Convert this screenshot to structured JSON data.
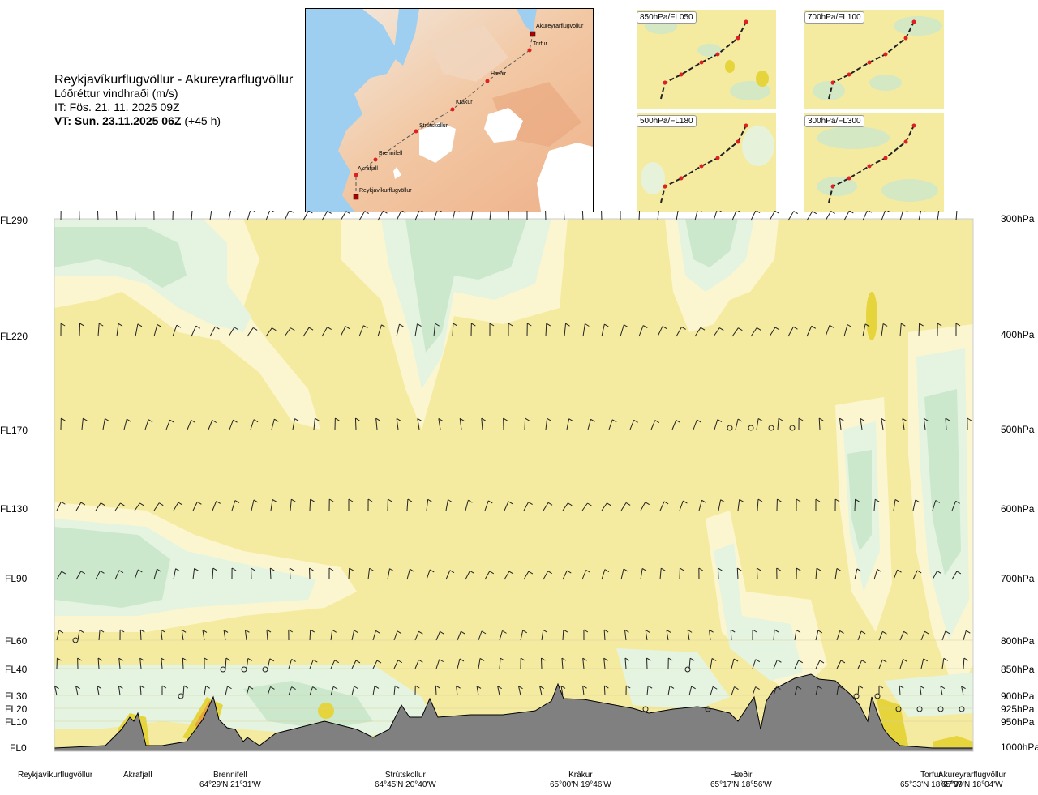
{
  "title": {
    "route": "Reykjavíkurflugvöllur - Akureyrarflugvöllur",
    "variable": "Lóðréttur vindhraði (m/s)",
    "issue_time": "IT: Fös. 21. 11. 2025 09Z",
    "valid_time_bold": "VT: Sun. 23.11.2025 06Z",
    "valid_time_offset": "(+45 h)"
  },
  "route_map": {
    "waypoints": [
      "Akureyrarflugvöllur",
      "Torfur",
      "Hæðir",
      "Krákur",
      "Strútskollur",
      "Brennifell",
      "Akrafjall",
      "Reykjavíkurflugvöllur"
    ]
  },
  "level_maps": [
    {
      "label": "850hPa/FL050"
    },
    {
      "label": "700hPa/FL100"
    },
    {
      "label": "500hPa/FL180"
    },
    {
      "label": "300hPa/FL300"
    }
  ],
  "flight_levels": [
    "FL290",
    "FL220",
    "FL170",
    "FL130",
    "FL90",
    "FL60",
    "FL40",
    "FL30",
    "FL20",
    "FL10",
    "FL0"
  ],
  "pressure_levels": [
    "300hPa",
    "400hPa",
    "500hPa",
    "600hPa",
    "700hPa",
    "800hPa",
    "850hPa",
    "900hPa",
    "925hPa",
    "950hPa",
    "1000hPa"
  ],
  "places": [
    {
      "name": "Reykjavíkurflugvöllur",
      "coord": ""
    },
    {
      "name": "Akrafjall",
      "coord": ""
    },
    {
      "name": "Brennifell",
      "coord": "64°29'N 21°31'W"
    },
    {
      "name": "Strútskollur",
      "coord": "64°45'N 20°40'W"
    },
    {
      "name": "Krákur",
      "coord": "65°00'N 19°46'W"
    },
    {
      "name": "Hæðir",
      "coord": "65°17'N 18°56'W"
    },
    {
      "name": "Torfur",
      "coord": "65°33'N 18°07'W"
    },
    {
      "name": "Akureyrarflugvöllur",
      "coord": "65°39'N 18°04'W"
    }
  ],
  "colors": {
    "yellow": "#f5eba0",
    "light_yellow": "#fbf6d0",
    "white": "#ffffff",
    "pale_green": "#e4f4e0",
    "green": "#cbe8cc",
    "dark_yellow": "#e6d43c",
    "orange": "#e8a23a",
    "terrain": "#808080"
  }
}
